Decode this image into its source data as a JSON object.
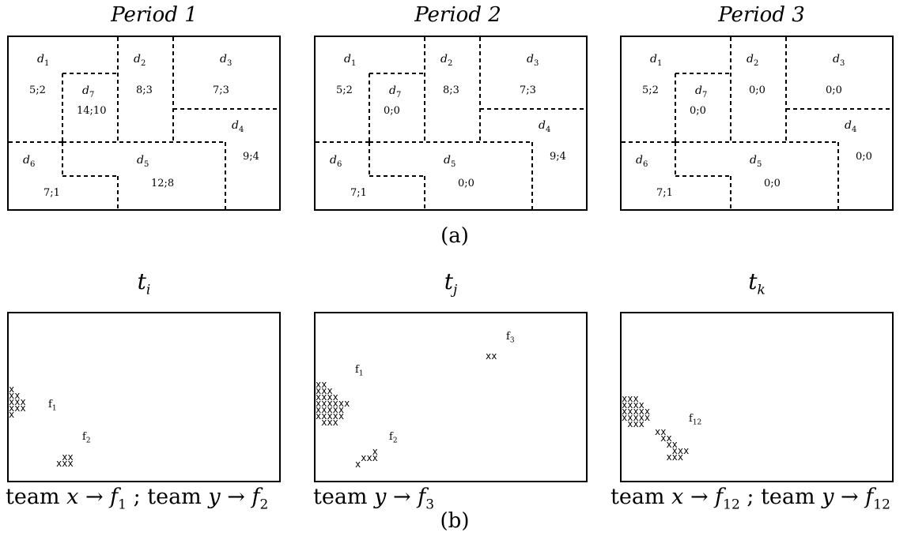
{
  "periods": [
    {
      "title": "Period 1",
      "values": {
        "d1": "5;2",
        "d2": "8;3",
        "d3": "7;3",
        "d7": "14;10",
        "d4": "9;4",
        "d5": "12;8",
        "d6": "7;1"
      }
    },
    {
      "title": "Period 2",
      "values": {
        "d1": "5;2",
        "d2": "8;3",
        "d3": "7;3",
        "d7": "0;0",
        "d4": "9;4",
        "d5": "0;0",
        "d6": "7;1"
      }
    },
    {
      "title": "Period 3",
      "values": {
        "d1": "5;2",
        "d2": "0;0",
        "d3": "0;0",
        "d7": "0;0",
        "d4": "0;0",
        "d5": "0;0",
        "d6": "7;1"
      }
    }
  ],
  "district_labels": {
    "d1": "d",
    "d1s": "1",
    "d2": "d",
    "d2s": "2",
    "d3": "d",
    "d3s": "3",
    "d4": "d",
    "d4s": "4",
    "d5": "d",
    "d5s": "5",
    "d6": "d",
    "d6s": "6",
    "d7": "d",
    "d7s": "7"
  },
  "caption_a": "(a)",
  "caption_b": "(b)",
  "snapshots": [
    {
      "t": "t",
      "sub": "i",
      "f_labels": [
        {
          "f": "f",
          "s": "1"
        },
        {
          "f": "f",
          "s": "2"
        }
      ],
      "team_line": [
        {
          "pre": "team ",
          "var": "x",
          "arrow": " → ",
          "fv": "f",
          "fs": "1"
        },
        {
          "sep": " ; "
        },
        {
          "pre": "team ",
          "var": "y",
          "arrow": " → ",
          "fv": "f",
          "fs": "2"
        }
      ]
    },
    {
      "t": "t",
      "sub": "j",
      "f_labels": [
        {
          "f": "f",
          "s": "3"
        },
        {
          "f": "f",
          "s": "1"
        },
        {
          "f": "f",
          "s": "2"
        }
      ],
      "team_line": [
        {
          "pre": "team ",
          "var": "y",
          "arrow": " → ",
          "fv": "f",
          "fs": "3"
        }
      ]
    },
    {
      "t": "t",
      "sub": "k",
      "f_labels": [
        {
          "f": "f",
          "s": "12"
        }
      ],
      "team_line": [
        {
          "pre": "team ",
          "var": "x",
          "arrow": " → ",
          "fv": "f",
          "fs": "12"
        },
        {
          "sep": " ; "
        },
        {
          "pre": "team ",
          "var": "y",
          "arrow": " → ",
          "fv": "f",
          "fs": "12"
        }
      ]
    }
  ],
  "marks": {
    "s1_cluster": "x\nxx\nxxx\nxxx\nx",
    "s1_small": " xx\nxxx",
    "s2_cluster": "xx\nxxx\nxxxx\nxxxxxx\nxxxxx\nxxxxx\n xxx",
    "s2_small": "   x\n xxx\nx",
    "s2_top": "xx",
    "s3_cluster": "xxx\nxxxx\nxxxxx\nxxxxx\n xxx",
    "s3_trail": "xx\n xx\n  xx\n   xxx\n  xxx"
  }
}
